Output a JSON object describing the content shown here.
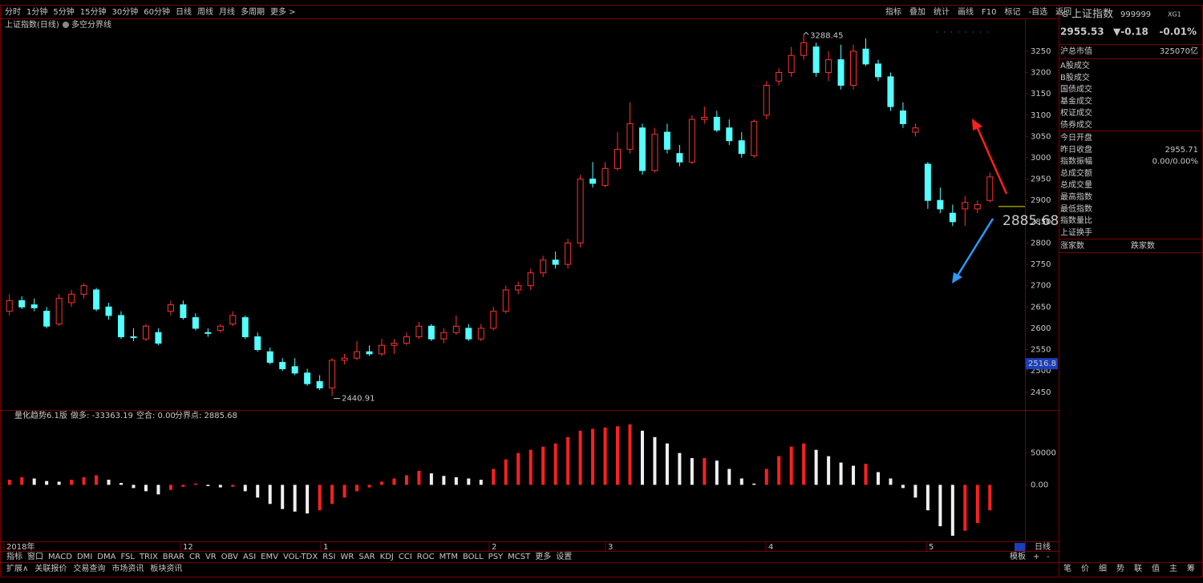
{
  "toolbar": {
    "periods": [
      "分时",
      "1分钟",
      "5分钟",
      "15分钟",
      "30分钟",
      "60分钟",
      "日线",
      "周线",
      "月线",
      "多周期",
      "更多 >"
    ],
    "actions": [
      "指标",
      "叠加",
      "统计",
      "画线",
      "F10",
      "标记",
      "-自选",
      "返回"
    ]
  },
  "chart": {
    "type": "candlestick",
    "title": "上证指数(日线)",
    "overlay": "多空分界线",
    "ylim": [
      2412,
      3325
    ],
    "yticks": [
      2450,
      2500,
      2550,
      2600,
      2650,
      2700,
      2750,
      2800,
      2850,
      2900,
      2950,
      3000,
      3050,
      3100,
      3150,
      3200,
      3250
    ],
    "candles": [
      [
        2640,
        2680,
        2630,
        2665
      ],
      [
        2665,
        2675,
        2645,
        2650
      ],
      [
        2655,
        2670,
        2640,
        2648
      ],
      [
        2640,
        2650,
        2600,
        2605
      ],
      [
        2610,
        2680,
        2605,
        2670
      ],
      [
        2660,
        2690,
        2650,
        2680
      ],
      [
        2680,
        2705,
        2670,
        2700
      ],
      [
        2690,
        2695,
        2640,
        2645
      ],
      [
        2650,
        2660,
        2620,
        2630
      ],
      [
        2630,
        2640,
        2575,
        2580
      ],
      [
        2580,
        2600,
        2570,
        2578
      ],
      [
        2575,
        2610,
        2570,
        2605
      ],
      [
        2590,
        2600,
        2560,
        2565
      ],
      [
        2640,
        2665,
        2630,
        2655
      ],
      [
        2655,
        2665,
        2620,
        2625
      ],
      [
        2625,
        2635,
        2595,
        2600
      ],
      [
        2590,
        2600,
        2580,
        2588
      ],
      [
        2595,
        2610,
        2590,
        2605
      ],
      [
        2610,
        2640,
        2605,
        2630
      ],
      [
        2625,
        2630,
        2575,
        2580
      ],
      [
        2580,
        2590,
        2545,
        2550
      ],
      [
        2545,
        2555,
        2515,
        2520
      ],
      [
        2520,
        2530,
        2500,
        2505
      ],
      [
        2510,
        2530,
        2490,
        2495
      ],
      [
        2495,
        2505,
        2465,
        2470
      ],
      [
        2475,
        2490,
        2455,
        2460
      ],
      [
        2460,
        2530,
        2440.91,
        2525
      ],
      [
        2525,
        2540,
        2515,
        2530
      ],
      [
        2530,
        2570,
        2525,
        2545
      ],
      [
        2545,
        2560,
        2535,
        2540
      ],
      [
        2540,
        2575,
        2535,
        2560
      ],
      [
        2560,
        2575,
        2540,
        2565
      ],
      [
        2565,
        2590,
        2560,
        2580
      ],
      [
        2580,
        2615,
        2575,
        2605
      ],
      [
        2605,
        2610,
        2570,
        2575
      ],
      [
        2575,
        2600,
        2565,
        2590
      ],
      [
        2590,
        2630,
        2585,
        2605
      ],
      [
        2600,
        2610,
        2570,
        2575
      ],
      [
        2575,
        2610,
        2570,
        2600
      ],
      [
        2600,
        2650,
        2595,
        2640
      ],
      [
        2640,
        2700,
        2635,
        2690
      ],
      [
        2690,
        2710,
        2680,
        2700
      ],
      [
        2700,
        2740,
        2690,
        2730
      ],
      [
        2730,
        2770,
        2720,
        2760
      ],
      [
        2760,
        2780,
        2740,
        2750
      ],
      [
        2750,
        2810,
        2740,
        2800
      ],
      [
        2800,
        2960,
        2790,
        2950
      ],
      [
        2950,
        2990,
        2930,
        2940
      ],
      [
        2935,
        2990,
        2930,
        2975
      ],
      [
        2975,
        3060,
        2970,
        3020
      ],
      [
        3020,
        3130,
        3010,
        3080
      ],
      [
        3070,
        3080,
        2960,
        2970
      ],
      [
        2970,
        3070,
        2965,
        3055
      ],
      [
        3060,
        3080,
        3010,
        3020
      ],
      [
        3010,
        3030,
        2980,
        2990
      ],
      [
        2990,
        3100,
        2985,
        3090
      ],
      [
        3090,
        3120,
        3080,
        3095
      ],
      [
        3095,
        3110,
        3060,
        3065
      ],
      [
        3070,
        3090,
        3030,
        3040
      ],
      [
        3040,
        3060,
        3000,
        3010
      ],
      [
        3005,
        3090,
        3000,
        3085
      ],
      [
        3100,
        3180,
        3090,
        3170
      ],
      [
        3180,
        3210,
        3170,
        3200
      ],
      [
        3200,
        3260,
        3190,
        3240
      ],
      [
        3240,
        3288.45,
        3230,
        3270
      ],
      [
        3260,
        3270,
        3190,
        3200
      ],
      [
        3200,
        3250,
        3180,
        3230
      ],
      [
        3230,
        3265,
        3160,
        3170
      ],
      [
        3170,
        3265,
        3160,
        3250
      ],
      [
        3255,
        3280,
        3215,
        3220
      ],
      [
        3220,
        3230,
        3180,
        3190
      ],
      [
        3190,
        3200,
        3110,
        3120
      ],
      [
        3110,
        3130,
        3070,
        3080
      ],
      [
        3060,
        3080,
        3050,
        3070
      ],
      [
        2985,
        2990,
        2880,
        2900
      ],
      [
        2900,
        2930,
        2870,
        2880
      ],
      [
        2870,
        2890,
        2840,
        2850
      ],
      [
        2880,
        2910,
        2840,
        2895
      ],
      [
        2880,
        2900,
        2870,
        2890
      ],
      [
        2900,
        2965,
        2895,
        2955
      ]
    ],
    "high": 3288.45,
    "low": 2440.91,
    "line_value": 2885.68,
    "cursor_value": 2516.8,
    "months": [
      "2018年",
      "12",
      "1",
      "2",
      "3",
      "4",
      "5"
    ]
  },
  "indicator": {
    "type": "bar",
    "name": "量化趋势6.1版",
    "long": "做多: -33363.19",
    "short": "空合: 0.00",
    "pivot": "分界点: 2885.68",
    "ylim": [
      -87500,
      116250
    ],
    "yticks": [
      50000,
      {
        "value": 0,
        "label": "0.00"
      }
    ],
    "values": [
      8000,
      12000,
      10000,
      6000,
      5000,
      8000,
      12000,
      15000,
      8000,
      3000,
      -5000,
      -10000,
      -15000,
      -8000,
      -3000,
      2000,
      -2000,
      -4000,
      -3000,
      -10000,
      -20000,
      -30000,
      -38000,
      -42000,
      -45000,
      -40000,
      -30000,
      -20000,
      -10000,
      -4000,
      5000,
      10000,
      15000,
      22000,
      18000,
      14000,
      12000,
      10000,
      8000,
      25000,
      40000,
      50000,
      55000,
      60000,
      65000,
      75000,
      85000,
      88000,
      90000,
      92000,
      95000,
      85000,
      75000,
      65000,
      50000,
      42000,
      42000,
      38000,
      25000,
      10000,
      2000,
      25000,
      45000,
      60000,
      65000,
      55000,
      45000,
      35000,
      30000,
      33000,
      20000,
      10000,
      -5000,
      -20000,
      -40000,
      -65000,
      -80000,
      -72000,
      -60000,
      -40000
    ]
  },
  "tabs": [
    "指标",
    "窗口",
    "MACD",
    "DMI",
    "DMA",
    "FSL",
    "TRIX",
    "BRAR",
    "CR",
    "VR",
    "OBV",
    "ASI",
    "EMV",
    "VOL-TDX",
    "RSI",
    "WR",
    "SAR",
    "KDJ",
    "CCI",
    "ROC",
    "MTM",
    "BOLL",
    "PSY",
    "MCST",
    "更多",
    "设置"
  ],
  "footer": [
    "扩展∧",
    "关联报价",
    "交易查询",
    "市场资讯",
    "板块资讯"
  ],
  "axis_controls": {
    "period": "日线",
    "template": "模板",
    "plus": "+",
    "minus": "-"
  },
  "panel": {
    "flag": "G",
    "name": "上证指数",
    "code": "999999",
    "tag": "XG1",
    "price": "2955.53",
    "change": "▼-0.18",
    "pct": "-0.01%",
    "cap_label": "沪总市值",
    "cap": "325070亿",
    "turnover": [
      "A股成交",
      "B股成交",
      "国债成交",
      "基金成交",
      "权证成交",
      "债券成交"
    ],
    "stats": [
      [
        "今日开盘",
        ""
      ],
      [
        "昨日收盘",
        "2955.71"
      ],
      [
        "指数振幅",
        "0.00/0.00%"
      ],
      [
        "总成交额",
        ""
      ],
      [
        "总成交量",
        ""
      ],
      [
        "最高指数",
        ""
      ],
      [
        "最低指数",
        ""
      ],
      [
        "指数量比",
        ""
      ],
      [
        "上证换手",
        ""
      ]
    ],
    "breadth": [
      "涨家数",
      "跌家数"
    ],
    "bottom_tabs": [
      "笔",
      "价",
      "细",
      "势",
      "联",
      "值",
      "主",
      "筹"
    ]
  }
}
